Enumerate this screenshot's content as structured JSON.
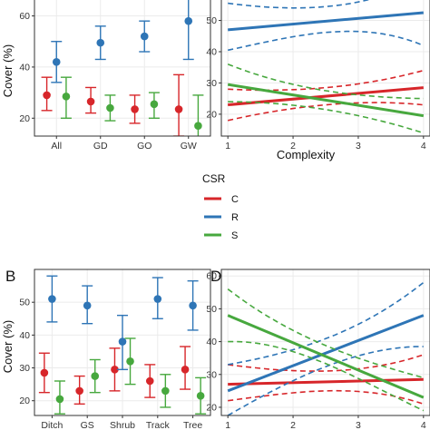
{
  "colors": {
    "C": "#D7262A",
    "R": "#2E75B6",
    "S": "#47A83E"
  },
  "legend": {
    "title": "CSR",
    "items": [
      {
        "key": "C",
        "label": "C"
      },
      {
        "key": "R",
        "label": "R"
      },
      {
        "key": "S",
        "label": "S"
      }
    ]
  },
  "chart_data": [
    {
      "panel": "A",
      "panel_label": "",
      "type": "scatter",
      "error_bars": true,
      "categories": [
        "All",
        "GD",
        "GO",
        "GW"
      ],
      "xlabel": "",
      "ylabel": "Cover (%)",
      "ylim": [
        13,
        68
      ],
      "yticks": [
        20,
        40,
        60
      ],
      "grid": true,
      "series": [
        {
          "name": "C",
          "values": [
            29,
            26.5,
            23.5,
            23.5
          ],
          "lower": [
            23,
            22,
            18,
            13
          ],
          "upper": [
            36,
            32,
            29,
            37
          ]
        },
        {
          "name": "R",
          "values": [
            42,
            49.5,
            52,
            58
          ],
          "lower": [
            34,
            43,
            46,
            43
          ],
          "upper": [
            50,
            56,
            58,
            70
          ]
        },
        {
          "name": "S",
          "values": [
            28.5,
            24,
            25.5,
            17
          ],
          "lower": [
            20,
            19,
            20,
            9
          ],
          "upper": [
            36,
            29,
            30,
            29
          ]
        }
      ]
    },
    {
      "panel": "C",
      "panel_label": "",
      "type": "line",
      "confidence_band": "dashed",
      "xlabel": "Complexity",
      "ylabel": "",
      "xlim": [
        0.9,
        4.1
      ],
      "ylim": [
        13,
        58
      ],
      "xticks": [
        1,
        2,
        3,
        4
      ],
      "yticks": [
        20,
        30,
        40,
        50
      ],
      "grid": true,
      "x": [
        1,
        4
      ],
      "series": [
        {
          "name": "C",
          "values": [
            23,
            28.5
          ],
          "lower": [
            18,
            23
          ],
          "upper": [
            28,
            34
          ]
        },
        {
          "name": "R",
          "values": [
            47,
            52.5
          ],
          "lower": [
            40.5,
            42
          ],
          "upper": [
            55.5,
            63
          ]
        },
        {
          "name": "S",
          "values": [
            29.5,
            19.5
          ],
          "lower": [
            24,
            14
          ],
          "upper": [
            36,
            25
          ]
        }
      ]
    },
    {
      "panel": "B",
      "panel_label": "B",
      "type": "scatter",
      "error_bars": true,
      "categories": [
        "Ditch",
        "GS",
        "Shrub",
        "Track",
        "Tree"
      ],
      "xlabel": "",
      "ylabel": "Cover (%)",
      "ylim": [
        15.5,
        60
      ],
      "yticks": [
        20,
        30,
        40,
        50
      ],
      "grid": true,
      "series": [
        {
          "name": "C",
          "values": [
            28.5,
            23,
            29.5,
            26,
            29.5
          ],
          "lower": [
            22.5,
            19,
            23,
            21,
            23.5
          ],
          "upper": [
            34.5,
            27.5,
            36,
            31,
            36.5
          ]
        },
        {
          "name": "R",
          "values": [
            51,
            49,
            38,
            51,
            49
          ],
          "lower": [
            44,
            43.5,
            29.5,
            45,
            41.5
          ],
          "upper": [
            58,
            55,
            46,
            57.5,
            56.5
          ]
        },
        {
          "name": "S",
          "values": [
            20.5,
            27.5,
            32,
            23,
            21.5
          ],
          "lower": [
            16,
            22.5,
            25,
            18,
            16
          ],
          "upper": [
            26,
            32.5,
            39,
            28,
            27
          ]
        }
      ]
    },
    {
      "panel": "D",
      "panel_label": "D",
      "type": "line",
      "confidence_band": "dashed",
      "xlabel": "",
      "ylabel": "",
      "xlim": [
        0.9,
        4.1
      ],
      "ylim": [
        17.5,
        62
      ],
      "xticks": [
        1,
        2,
        3,
        4
      ],
      "yticks": [
        20,
        30,
        40,
        50,
        60
      ],
      "grid": true,
      "x": [
        1,
        4
      ],
      "series": [
        {
          "name": "C",
          "values": [
            27,
            28.5
          ],
          "lower": [
            22,
            21
          ],
          "upper": [
            33,
            36
          ]
        },
        {
          "name": "R",
          "values": [
            25,
            48
          ],
          "lower": [
            17.5,
            38.5
          ],
          "upper": [
            33,
            58
          ]
        },
        {
          "name": "S",
          "values": [
            48,
            23
          ],
          "lower": [
            40,
            19
          ],
          "upper": [
            56,
            29
          ]
        }
      ]
    }
  ]
}
